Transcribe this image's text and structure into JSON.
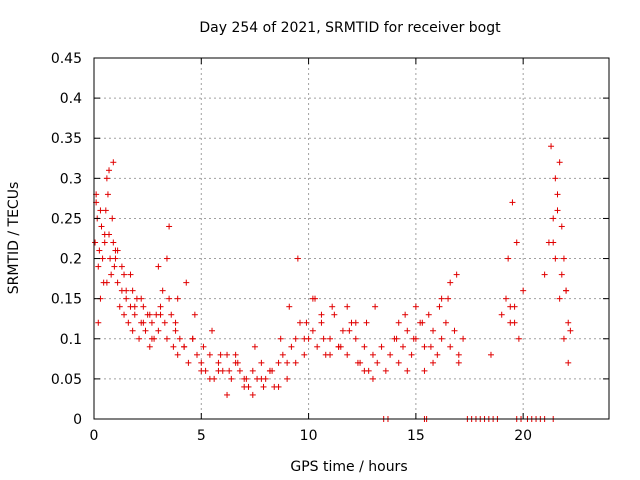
{
  "chart_data": {
    "type": "scatter",
    "title": "Day 254 of 2021, SRMTID for receiver bogt",
    "xlabel": "GPS time / hours",
    "ylabel": "SRMTID / TECUs",
    "xlim": [
      0,
      24
    ],
    "ylim": [
      0,
      0.45
    ],
    "x_ticks": [
      0,
      5,
      10,
      15,
      20
    ],
    "x_tick_labels": [
      "0",
      "5",
      "10",
      "15",
      "20"
    ],
    "y_ticks": [
      0,
      0.05,
      0.1,
      0.15,
      0.2,
      0.25,
      0.3,
      0.35,
      0.4,
      0.45
    ],
    "y_tick_labels": [
      "0",
      "0.05",
      "0.1",
      "0.15",
      "0.2",
      "0.25",
      "0.3",
      "0.35",
      "0.4",
      "0.45"
    ],
    "grid": true,
    "marker": "+",
    "series": [
      {
        "name": "SRMTID",
        "color": "#e00000",
        "x": [
          0.05,
          0.1,
          0.15,
          0.2,
          0.25,
          0.3,
          0.35,
          0.4,
          0.45,
          0.5,
          0.55,
          0.6,
          0.65,
          0.7,
          0.75,
          0.8,
          0.85,
          0.9,
          0.95,
          1.0,
          1.1,
          1.2,
          1.3,
          1.4,
          1.5,
          1.6,
          1.7,
          1.8,
          1.9,
          2.0,
          2.1,
          2.2,
          2.3,
          2.4,
          2.5,
          2.6,
          2.7,
          2.8,
          2.9,
          3.0,
          3.1,
          3.2,
          3.3,
          3.4,
          3.5,
          3.6,
          3.7,
          3.8,
          3.9,
          4.0,
          4.2,
          4.4,
          4.6,
          4.8,
          5.0,
          5.2,
          5.4,
          5.6,
          5.8,
          6.0,
          6.2,
          6.4,
          6.6,
          6.8,
          7.0,
          7.2,
          7.4,
          7.6,
          7.8,
          8.0,
          8.2,
          8.4,
          8.6,
          8.8,
          9.0,
          9.2,
          9.4,
          9.6,
          9.8,
          10.0,
          10.2,
          10.4,
          10.6,
          10.8,
          11.0,
          11.2,
          11.4,
          11.6,
          11.8,
          12.0,
          12.2,
          12.4,
          12.6,
          12.8,
          13.0,
          13.2,
          13.4,
          13.6,
          13.8,
          14.0,
          14.2,
          14.4,
          14.6,
          14.8,
          15.0,
          15.2,
          15.4,
          15.6,
          15.8,
          16.0,
          16.2,
          16.4,
          16.6,
          16.8,
          17.0,
          17.2,
          18.5,
          19.0,
          19.2,
          19.4,
          19.6,
          19.8,
          20.0,
          21.0,
          21.2,
          21.4,
          21.5,
          21.6,
          21.7,
          21.8,
          21.9,
          22.0,
          22.1,
          22.2,
          0.1,
          0.3,
          0.5,
          0.7,
          0.9,
          1.1,
          1.3,
          1.5,
          1.7,
          1.9,
          2.3,
          2.7,
          3.1,
          3.5,
          3.9,
          4.3,
          4.7,
          5.1,
          5.5,
          5.9,
          6.3,
          6.7,
          7.1,
          7.5,
          7.9,
          8.3,
          8.7,
          9.1,
          9.5,
          9.9,
          10.3,
          10.7,
          11.1,
          11.5,
          11.9,
          12.3,
          12.7,
          13.1,
          14.1,
          14.5,
          14.9,
          15.3,
          15.7,
          16.1,
          16.5,
          16.9,
          19.3,
          19.5,
          19.7,
          21.3,
          21.5,
          21.7,
          21.9,
          22.1,
          0.2,
          0.6,
          1.0,
          1.4,
          1.8,
          2.2,
          2.6,
          3.0,
          3.4,
          3.8,
          4.2,
          4.6,
          5.0,
          5.4,
          5.8,
          6.2,
          6.6,
          7.0,
          7.4,
          7.8,
          8.2,
          8.6,
          9.0,
          9.4,
          9.8,
          10.2,
          10.6,
          11.0,
          11.4,
          11.8,
          12.2,
          12.6,
          13.0,
          14.2,
          14.6,
          15.0,
          15.4,
          15.8,
          16.2,
          16.6,
          17.0,
          19.4,
          19.6,
          21.4,
          21.6,
          21.8,
          22.0,
          13.5,
          13.7,
          15.4,
          15.5,
          17.4,
          17.6,
          17.8,
          18.0,
          18.2,
          18.4,
          18.6,
          18.8,
          19.7,
          19.9,
          20.2,
          20.4,
          20.6,
          20.8,
          21.0,
          21.4
        ],
        "y": [
          0.22,
          0.27,
          0.25,
          0.19,
          0.21,
          0.15,
          0.24,
          0.2,
          0.17,
          0.22,
          0.26,
          0.3,
          0.28,
          0.23,
          0.2,
          0.18,
          0.25,
          0.22,
          0.19,
          0.21,
          0.17,
          0.14,
          0.16,
          0.13,
          0.15,
          0.12,
          0.14,
          0.11,
          0.13,
          0.15,
          0.1,
          0.12,
          0.14,
          0.11,
          0.13,
          0.09,
          0.12,
          0.1,
          0.13,
          0.11,
          0.14,
          0.16,
          0.12,
          0.1,
          0.15,
          0.13,
          0.09,
          0.11,
          0.08,
          0.1,
          0.09,
          0.07,
          0.1,
          0.08,
          0.07,
          0.06,
          0.08,
          0.05,
          0.07,
          0.06,
          0.08,
          0.05,
          0.07,
          0.06,
          0.05,
          0.04,
          0.06,
          0.05,
          0.07,
          0.05,
          0.06,
          0.04,
          0.07,
          0.08,
          0.07,
          0.09,
          0.1,
          0.12,
          0.08,
          0.1,
          0.11,
          0.09,
          0.12,
          0.08,
          0.1,
          0.13,
          0.09,
          0.11,
          0.08,
          0.12,
          0.1,
          0.07,
          0.09,
          0.06,
          0.08,
          0.07,
          0.09,
          0.06,
          0.08,
          0.1,
          0.12,
          0.09,
          0.11,
          0.08,
          0.1,
          0.12,
          0.09,
          0.13,
          0.11,
          0.08,
          0.1,
          0.12,
          0.09,
          0.11,
          0.08,
          0.1,
          0.08,
          0.13,
          0.15,
          0.12,
          0.14,
          0.1,
          0.16,
          0.18,
          0.22,
          0.25,
          0.3,
          0.28,
          0.32,
          0.24,
          0.2,
          0.16,
          0.12,
          0.11,
          0.28,
          0.26,
          0.23,
          0.31,
          0.32,
          0.21,
          0.19,
          0.16,
          0.18,
          0.14,
          0.12,
          0.1,
          0.13,
          0.24,
          0.15,
          0.17,
          0.13,
          0.09,
          0.11,
          0.08,
          0.06,
          0.07,
          0.05,
          0.09,
          0.04,
          0.06,
          0.1,
          0.14,
          0.2,
          0.12,
          0.15,
          0.1,
          0.14,
          0.09,
          0.11,
          0.07,
          0.12,
          0.14,
          0.1,
          0.13,
          0.1,
          0.12,
          0.09,
          0.14,
          0.15,
          0.18,
          0.2,
          0.27,
          0.22,
          0.34,
          0.2,
          0.15,
          0.1,
          0.07,
          0.12,
          0.17,
          0.2,
          0.18,
          0.16,
          0.15,
          0.13,
          0.19,
          0.2,
          0.12,
          0.09,
          0.1,
          0.06,
          0.05,
          0.06,
          0.03,
          0.08,
          0.04,
          0.03,
          0.05,
          0.06,
          0.04,
          0.05,
          0.07,
          0.1,
          0.15,
          0.13,
          0.08,
          0.09,
          0.14,
          0.12,
          0.06,
          0.05,
          0.07,
          0.06,
          0.14,
          0.06,
          0.07,
          0.15,
          0.17,
          0.07,
          0.14,
          0.12,
          0.22,
          0.26,
          0.18,
          0.16,
          0.0,
          0.0,
          0.0,
          0.0,
          0.0,
          0.0,
          0.0,
          0.0,
          0.0,
          0.0,
          0.0,
          0.0,
          0.0,
          0.0,
          0.0,
          0.0,
          0.0,
          0.0,
          0.0,
          0.0
        ]
      }
    ]
  }
}
